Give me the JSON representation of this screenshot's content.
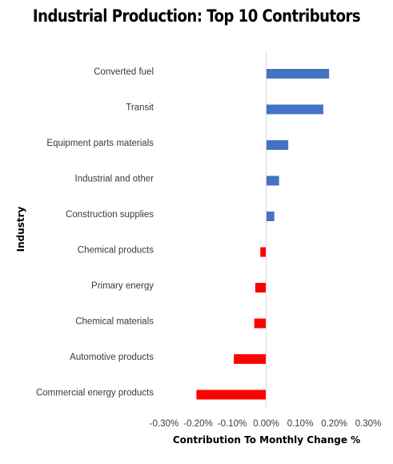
{
  "chart_data": {
    "type": "bar",
    "orientation": "horizontal",
    "title": "Industrial Production: Top 10 Contributors",
    "xlabel": "Contribution To Monthly Change %",
    "ylabel": "Industry",
    "xlim": [
      -0.003,
      0.003
    ],
    "ticks": [
      -0.003,
      -0.002,
      -0.001,
      0,
      0.001,
      0.002,
      0.003
    ],
    "tick_labels": [
      "-0.30%",
      "-0.20%",
      "-0.10%",
      "0.00%",
      "0.10%",
      "0.20%",
      "0.30%"
    ],
    "categories": [
      "Converted fuel",
      "Transit",
      "Equipment parts materials",
      "Industrial and other",
      "Construction supplies",
      "Chemical products",
      "Primary energy",
      "Chemical materials",
      "Automotive products",
      "Commercial energy products"
    ],
    "values": [
      0.00185,
      0.00168,
      0.00065,
      0.00038,
      0.00024,
      -0.00017,
      -0.00032,
      -0.00035,
      -0.00095,
      -0.00205
    ],
    "colors": {
      "positive": "#4472c4",
      "negative": "#ff0000",
      "gridline": "#d9d9d9"
    },
    "grid": false,
    "legend": "none"
  }
}
